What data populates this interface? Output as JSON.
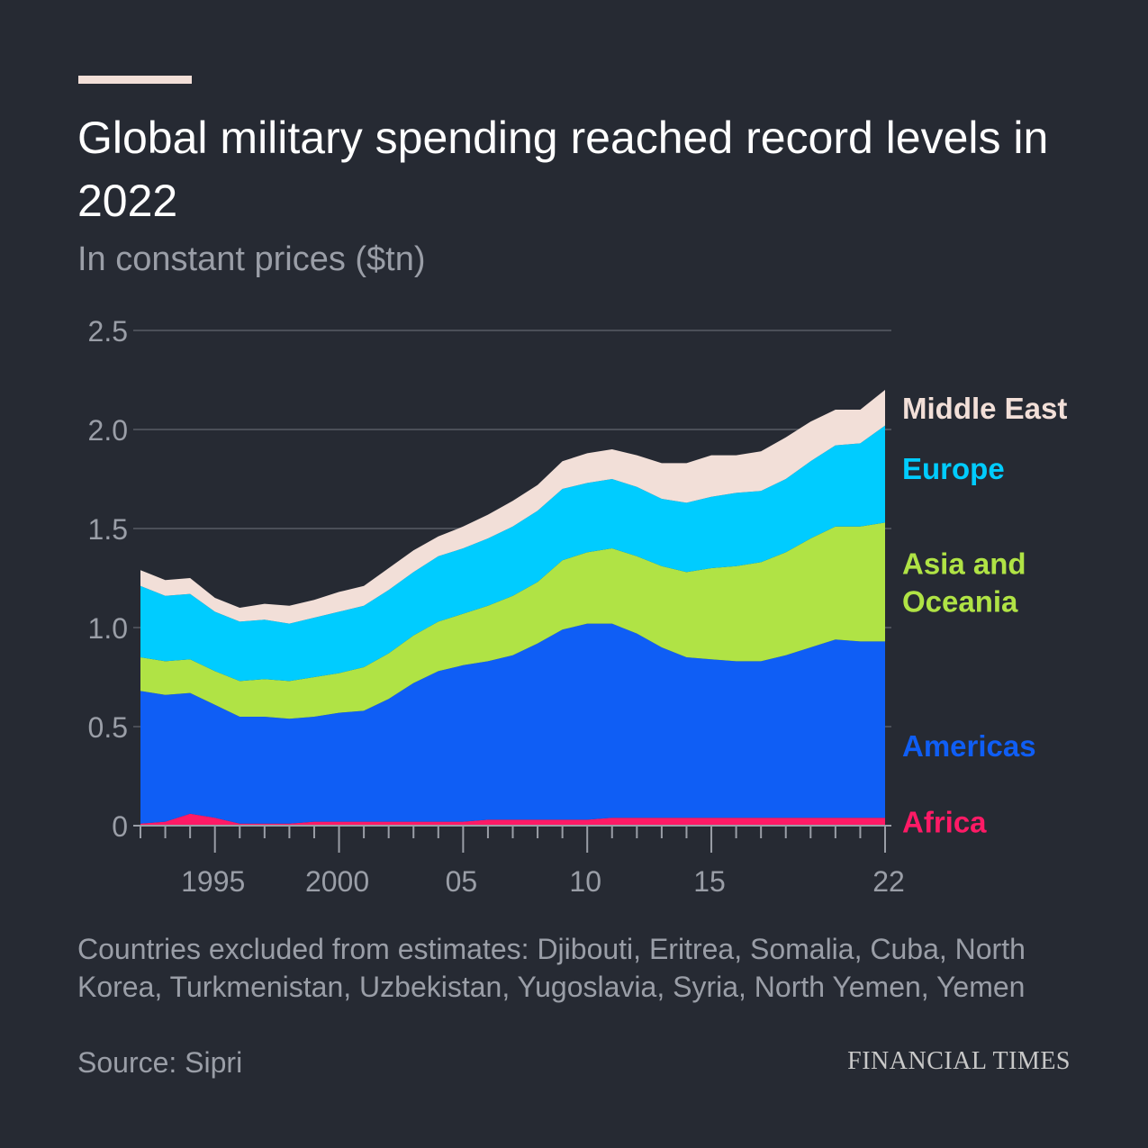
{
  "header": {
    "title": "Global military spending reached record levels in 2022",
    "subtitle": "In constant prices ($tn)"
  },
  "footer": {
    "note": "Countries excluded from estimates: Djibouti, Eritrea, Somalia, Cuba, North Korea, Turkmenistan, Uzbekistan, Yugoslavia, Syria, North Yemen, Yemen",
    "source": "Source: Sipri",
    "brand": "FINANCIAL TIMES"
  },
  "chart_data": {
    "type": "area",
    "stacked": true,
    "x": [
      1992,
      1993,
      1994,
      1995,
      1996,
      1997,
      1998,
      1999,
      2000,
      2001,
      2002,
      2003,
      2004,
      2005,
      2006,
      2007,
      2008,
      2009,
      2010,
      2011,
      2012,
      2013,
      2014,
      2015,
      2016,
      2017,
      2018,
      2019,
      2020,
      2021,
      2022
    ],
    "x_tick_values": [
      1995,
      2000,
      2005,
      2010,
      2015,
      2022
    ],
    "x_tick_labels": [
      "1995",
      "2000",
      "05",
      "10",
      "15",
      "22"
    ],
    "ylim": [
      0,
      2.5
    ],
    "y_ticks": [
      0,
      0.5,
      1.0,
      1.5,
      2.0,
      2.5
    ],
    "y_tick_labels": [
      "0",
      "0.5",
      "1.0",
      "1.5",
      "2.0",
      "2.5"
    ],
    "grid": true,
    "series": [
      {
        "name": "Africa",
        "color": "#ff1a66",
        "values": [
          0.01,
          0.02,
          0.06,
          0.04,
          0.01,
          0.01,
          0.01,
          0.02,
          0.02,
          0.02,
          0.02,
          0.02,
          0.02,
          0.02,
          0.03,
          0.03,
          0.03,
          0.03,
          0.03,
          0.04,
          0.04,
          0.04,
          0.04,
          0.04,
          0.04,
          0.04,
          0.04,
          0.04,
          0.04,
          0.04,
          0.04
        ]
      },
      {
        "name": "Americas",
        "color": "#0f5ef5",
        "values": [
          0.67,
          0.64,
          0.61,
          0.57,
          0.54,
          0.54,
          0.53,
          0.53,
          0.55,
          0.56,
          0.62,
          0.7,
          0.76,
          0.79,
          0.8,
          0.83,
          0.89,
          0.96,
          0.99,
          0.98,
          0.93,
          0.86,
          0.81,
          0.8,
          0.79,
          0.79,
          0.82,
          0.86,
          0.9,
          0.89,
          0.89
        ]
      },
      {
        "name": "Asia and Oceania",
        "color": "#b0e345",
        "values": [
          0.17,
          0.17,
          0.17,
          0.17,
          0.18,
          0.19,
          0.19,
          0.2,
          0.2,
          0.22,
          0.23,
          0.24,
          0.25,
          0.26,
          0.28,
          0.3,
          0.31,
          0.35,
          0.36,
          0.38,
          0.39,
          0.41,
          0.43,
          0.46,
          0.48,
          0.5,
          0.52,
          0.55,
          0.57,
          0.58,
          0.6
        ]
      },
      {
        "name": "Europe",
        "color": "#00ccff",
        "values": [
          0.36,
          0.33,
          0.33,
          0.3,
          0.3,
          0.3,
          0.29,
          0.3,
          0.31,
          0.31,
          0.32,
          0.32,
          0.33,
          0.33,
          0.34,
          0.35,
          0.36,
          0.36,
          0.35,
          0.35,
          0.35,
          0.34,
          0.35,
          0.36,
          0.37,
          0.36,
          0.37,
          0.39,
          0.41,
          0.42,
          0.49
        ]
      },
      {
        "name": "Middle East",
        "color": "#f2dfd8",
        "values": [
          0.08,
          0.08,
          0.08,
          0.07,
          0.07,
          0.08,
          0.09,
          0.09,
          0.1,
          0.1,
          0.11,
          0.11,
          0.1,
          0.11,
          0.12,
          0.13,
          0.13,
          0.14,
          0.15,
          0.15,
          0.16,
          0.18,
          0.2,
          0.21,
          0.19,
          0.2,
          0.21,
          0.2,
          0.18,
          0.17,
          0.18
        ]
      }
    ],
    "legend": {
      "placement": "right",
      "style": "direct-labels"
    }
  }
}
